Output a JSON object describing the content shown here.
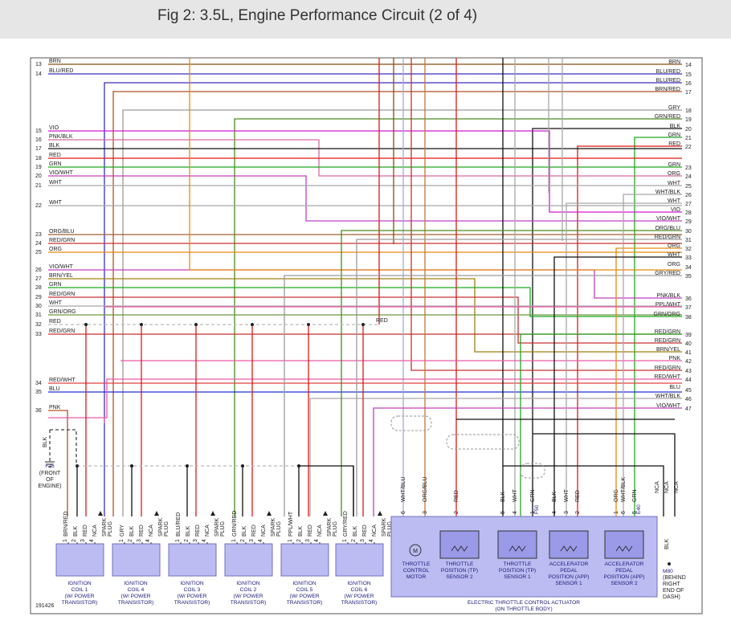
{
  "title": "Fig 2: 3.5L, Engine Performance Circuit (2 of 4)",
  "colors": {
    "BRN": "#8a4b12",
    "BLU_RED": "#3a2fc0",
    "BRN_RED": "#b0502a",
    "GRY": "#9a9a9a",
    "GRN_RED": "#4a8a20",
    "BLK": "#111111",
    "GRN": "#1fa81f",
    "RED": "#e01818",
    "VIO": "#d417d4",
    "PNK_BLK": "#d46aa0",
    "ORG": "#e88a10",
    "WHT": "#a8a8a8",
    "ORG_BLU": "#a06030",
    "RED_GRN": "#c83030",
    "VIO_WHT": "#c040c0",
    "BRN_YEL": "#a08010",
    "RED_WHT": "#e04040",
    "BLU": "#2030d0",
    "PNK": "#ea5aa8",
    "WHT_BLU": "#a8a8e0",
    "ORG_BLU2": "#c07838",
    "GRN_ORG": "#6a9a40",
    "component_fill": "#bcbcf2",
    "component_border": "#7070c0",
    "sensor_fill": "#9a9ae8"
  },
  "left_pins": [
    {
      "n": "13",
      "label": "BRN"
    },
    {
      "n": "14",
      "label": "BLU/RED"
    },
    {
      "n": "15",
      "label": "VIO"
    },
    {
      "n": "16",
      "label": "PNK/BLK"
    },
    {
      "n": "17",
      "label": "BLK"
    },
    {
      "n": "18",
      "label": "RED"
    },
    {
      "n": "19",
      "label": "GRN"
    },
    {
      "n": "20",
      "label": "VIO/WHT"
    },
    {
      "n": "21",
      "label": "WHT"
    },
    {
      "n": "22",
      "label": "WHT"
    },
    {
      "n": "23",
      "label": "ORG/BLU"
    },
    {
      "n": "24",
      "label": "RED/GRN"
    },
    {
      "n": "25",
      "label": "ORG"
    },
    {
      "n": "26",
      "label": "VIO/WHT"
    },
    {
      "n": "27",
      "label": "BRN/YEL"
    },
    {
      "n": "28",
      "label": "GRN"
    },
    {
      "n": "29",
      "label": "RED/GRN"
    },
    {
      "n": "30",
      "label": "WHT"
    },
    {
      "n": "31",
      "label": "GRN/ORG"
    },
    {
      "n": "32",
      "label": "RED"
    },
    {
      "n": "33",
      "label": "RED/GRN"
    },
    {
      "n": "34",
      "label": "RED/WHT"
    },
    {
      "n": "35",
      "label": "BLU"
    },
    {
      "n": "36",
      "label": "PNK"
    }
  ],
  "right_pins": [
    {
      "n": "14",
      "label": "BRN"
    },
    {
      "n": "15",
      "label": "BLU/RED"
    },
    {
      "n": "16",
      "label": "BLU/RED"
    },
    {
      "n": "17",
      "label": "BRN/RED"
    },
    {
      "n": "18",
      "label": "GRY"
    },
    {
      "n": "19",
      "label": "GRN/RED"
    },
    {
      "n": "20",
      "label": "BLK"
    },
    {
      "n": "21",
      "label": "GRN"
    },
    {
      "n": "22",
      "label": "RED"
    },
    {
      "n": "23",
      "label": "GRN"
    },
    {
      "n": "24",
      "label": "ORG"
    },
    {
      "n": "25",
      "label": "WHT"
    },
    {
      "n": "26",
      "label": "WHT/BLK"
    },
    {
      "n": "27",
      "label": "WHT"
    },
    {
      "n": "28",
      "label": "VIO"
    },
    {
      "n": "29",
      "label": "VIO/WHT"
    },
    {
      "n": "30",
      "label": "ORG/BLU"
    },
    {
      "n": "31",
      "label": "RED/GRN"
    },
    {
      "n": "32",
      "label": "ORG"
    },
    {
      "n": "33",
      "label": "WHT"
    },
    {
      "n": "34",
      "label": "ORG"
    },
    {
      "n": "35",
      "label": "GRY/RED"
    },
    {
      "n": "36",
      "label": "PNK/BLK"
    },
    {
      "n": "37",
      "label": "PPL/WHT"
    },
    {
      "n": "38",
      "label": "GRN/ORG"
    },
    {
      "n": "39",
      "label": "RED/GRN"
    },
    {
      "n": "40",
      "label": "RED/GRN"
    },
    {
      "n": "41",
      "label": "BRN/YEL"
    },
    {
      "n": "42",
      "label": "PNK"
    },
    {
      "n": "43",
      "label": "RED/GRN"
    },
    {
      "n": "44",
      "label": "RED/WHT"
    },
    {
      "n": "45",
      "label": "BLU"
    },
    {
      "n": "46",
      "label": "WHT/BLK"
    },
    {
      "n": "47",
      "label": "VIO/WHT"
    }
  ],
  "inline_red_label": "RED",
  "ground_f16": {
    "wire": "BLK",
    "name": "F16",
    "location": "(FRONT\nOF\nENGINE)"
  },
  "ground_m80": {
    "wire": "BLK",
    "name": "M80",
    "location": "(BEHIND\nRIGHT\nEND OF\nDASH)"
  },
  "coils": [
    {
      "name": "IGNITION\nCOIL 1\n(W/ POWER\nTRANSISTOR)",
      "wires": [
        "BRN/RED",
        "BLK",
        "RED",
        "NCA",
        "SPARK\nPLUG"
      ]
    },
    {
      "name": "IGNITION\nCOIL 4\n(W/ POWER\nTRANSISTOR)",
      "wires": [
        "GRY",
        "BLK",
        "RED",
        "NCA",
        "SPARK\nPLUG"
      ]
    },
    {
      "name": "IGNITION\nCOIL 3\n(W/ POWER\nTRANSISTOR)",
      "wires": [
        "BLU/RED",
        "BLK",
        "RED",
        "NCA",
        "SPARK\nPLUG"
      ]
    },
    {
      "name": "IGNITION\nCOIL 2\n(W/ POWER\nTRANSISTOR)",
      "wires": [
        "GRN/RED",
        "BLK",
        "RED",
        "NCA",
        "SPARK\nPLUG"
      ]
    },
    {
      "name": "IGNITION\nCOIL 5\n(W/ POWER\nTRANSISTOR)",
      "wires": [
        "PPL/WHT",
        "BLK",
        "RED",
        "NCA",
        "SPARK\nPLUG"
      ]
    },
    {
      "name": "IGNITION\nCOIL 6\n(W/ POWER\nTRANSISTOR)",
      "wires": [
        "GRY/RED",
        "BLK",
        "RED",
        "NCA",
        "SPARK\nPLUG"
      ]
    }
  ],
  "coil_pin_numbers": [
    "1",
    "2",
    "3",
    "4"
  ],
  "actuator": {
    "name": "ELECTRIC THROTTLE CONTROL ACTUATOR",
    "sub": "(ON THROTTLE BODY)",
    "motor_symbol": "M",
    "components": [
      "THROTTLE\nCONTROL\nMOTOR",
      "THROTTLE\nPOSITION (TP)\nSENSOR 2",
      "THROTTLE\nPOSITION (TP)\nSENSOR 1",
      "ACCELERATOR\nPEDAL\nPOSITION (APP)\nSENSOR 1",
      "ACCELERATOR\nPEDAL\nPOSITION (APP)\nSENSOR 2"
    ],
    "connectors": [
      "F50",
      "E40"
    ],
    "wires": [
      {
        "pin": "6",
        "label": "WHT/BLU"
      },
      {
        "pin": "3",
        "label": "ORG/BLU"
      },
      {
        "pin": "2",
        "label": "RED"
      },
      {
        "pin": "5",
        "label": "BLK"
      },
      {
        "pin": "4",
        "label": "WHT"
      },
      {
        "pin": "1",
        "label": "GRN"
      },
      {
        "pin": "4",
        "label": "BLK"
      },
      {
        "pin": "3",
        "label": "WHT"
      },
      {
        "pin": "2",
        "label": "RED"
      },
      {
        "pin": "1",
        "label": "ORG"
      },
      {
        "pin": "6",
        "label": "WHT/BLK"
      },
      {
        "pin": "5",
        "label": "GRN"
      }
    ],
    "nca": [
      "NCA",
      "NCA",
      "NCA"
    ]
  },
  "figure_number": "191426"
}
